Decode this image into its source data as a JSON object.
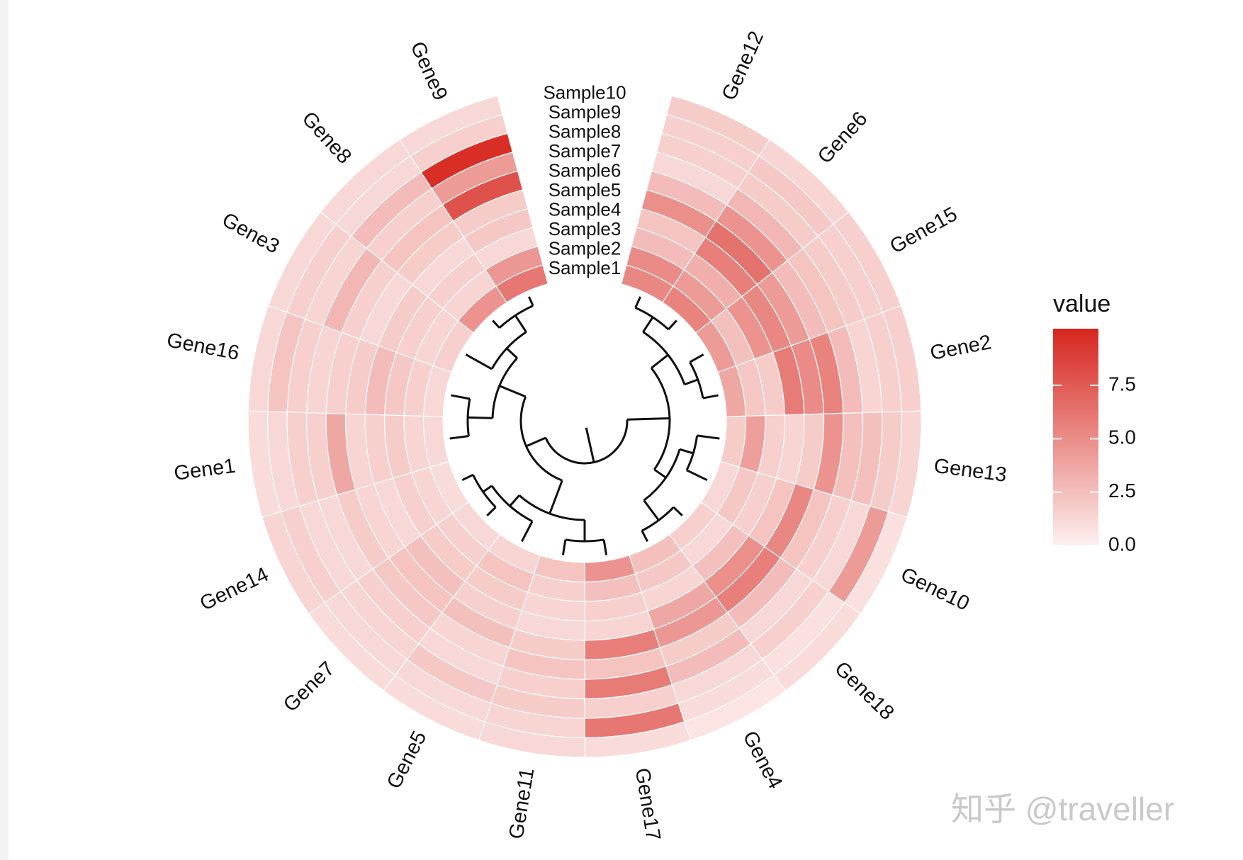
{
  "chart_data": {
    "type": "heatmap",
    "layout": "circular",
    "legend": {
      "title": "value",
      "ticks": [
        "0.0",
        "2.5",
        "5.0",
        "7.5"
      ],
      "position": "right"
    },
    "color_low": "#fdf0ef",
    "color_high": "#d7261e",
    "value_range": [
      0,
      10
    ],
    "samples": [
      "Sample1",
      "Sample2",
      "Sample3",
      "Sample4",
      "Sample5",
      "Sample6",
      "Sample7",
      "Sample8",
      "Sample9",
      "Sample10"
    ],
    "genes": [
      "Gene12",
      "Gene6",
      "Gene15",
      "Gene2",
      "Gene13",
      "Gene10",
      "Gene18",
      "Gene4",
      "Gene17",
      "Gene11",
      "Gene5",
      "Gene7",
      "Gene14",
      "Gene1",
      "Gene16",
      "Gene3",
      "Gene8",
      "Gene9"
    ],
    "values": [
      [
        5.2,
        5.0,
        2.6,
        2.2,
        4.8,
        2.6,
        1.2,
        1.6,
        1.6,
        1.8
      ],
      [
        5.4,
        4.2,
        3.2,
        5.6,
        6.2,
        4.6,
        2.8,
        1.8,
        2.0,
        1.4
      ],
      [
        4.2,
        2.4,
        4.6,
        5.2,
        4.2,
        2.6,
        2.2,
        1.8,
        1.6,
        1.6
      ],
      [
        3.6,
        2.0,
        1.8,
        5.8,
        5.0,
        5.4,
        2.6,
        1.4,
        1.6,
        1.6
      ],
      [
        1.8,
        4.0,
        1.6,
        1.4,
        1.8,
        4.6,
        2.4,
        2.4,
        1.8,
        1.4
      ],
      [
        1.2,
        2.0,
        1.6,
        2.2,
        5.2,
        2.2,
        1.6,
        1.2,
        4.2,
        0.8
      ],
      [
        1.6,
        1.2,
        2.4,
        4.8,
        5.6,
        2.6,
        1.2,
        1.6,
        0.8,
        1.0
      ],
      [
        2.4,
        2.0,
        1.4,
        3.6,
        4.4,
        1.8,
        2.6,
        1.2,
        1.0,
        0.6
      ],
      [
        4.6,
        2.4,
        1.6,
        1.4,
        5.6,
        2.2,
        5.8,
        1.6,
        6.0,
        1.0
      ],
      [
        2.2,
        1.6,
        1.4,
        1.2,
        1.8,
        2.2,
        1.6,
        1.8,
        1.4,
        1.2
      ],
      [
        1.4,
        2.2,
        1.8,
        1.6,
        2.4,
        1.4,
        1.2,
        2.0,
        1.2,
        1.0
      ],
      [
        1.2,
        1.6,
        1.8,
        2.4,
        2.2,
        2.0,
        1.6,
        1.4,
        1.2,
        1.0
      ],
      [
        1.0,
        1.4,
        1.6,
        1.2,
        1.4,
        1.8,
        1.2,
        1.2,
        1.6,
        1.4
      ],
      [
        1.2,
        1.4,
        1.8,
        1.6,
        1.4,
        3.6,
        1.6,
        1.6,
        1.2,
        1.0
      ],
      [
        1.2,
        1.6,
        2.0,
        2.6,
        1.8,
        1.6,
        1.4,
        1.6,
        2.2,
        1.2
      ],
      [
        1.6,
        1.4,
        1.6,
        1.8,
        1.2,
        1.6,
        2.8,
        1.4,
        1.6,
        1.2
      ],
      [
        4.6,
        1.4,
        1.6,
        1.2,
        1.8,
        2.2,
        1.6,
        2.6,
        1.2,
        1.2
      ],
      [
        6.0,
        4.4,
        1.2,
        2.0,
        1.8,
        7.8,
        4.2,
        9.6,
        1.6,
        1.2
      ]
    ],
    "dendrogram": {
      "shown": true,
      "position": "inner"
    }
  },
  "watermark": "知乎 @traveller"
}
